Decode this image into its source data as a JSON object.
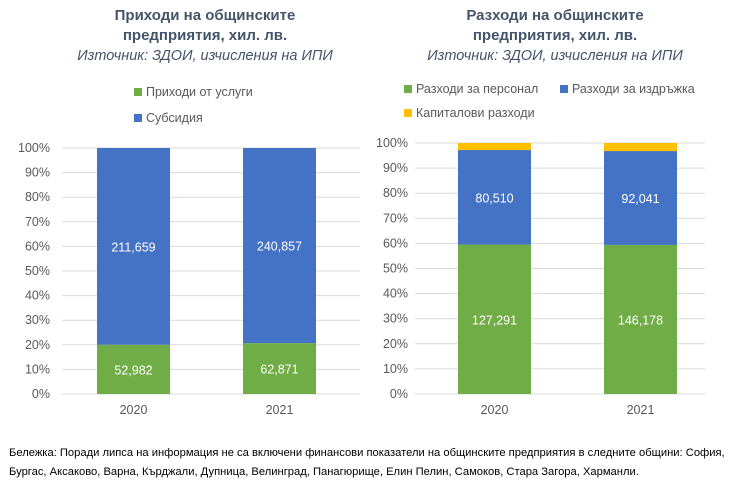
{
  "chart_data": [
    {
      "type": "bar",
      "stacked": "percent",
      "title": "Приходи на общинските предприятия, хил. лв.",
      "subtitle": "Източник: ЗДОИ, изчисления на ИПИ",
      "categories": [
        "2020",
        "2021"
      ],
      "ylim": [
        0,
        100
      ],
      "yticks": [
        "0%",
        "10%",
        "20%",
        "30%",
        "40%",
        "50%",
        "60%",
        "70%",
        "80%",
        "90%",
        "100%"
      ],
      "grid": true,
      "legend": "top",
      "series": [
        {
          "name": "Приходи от услуги",
          "color": "#70ad47",
          "values": [
            52982,
            62871
          ],
          "labels": [
            "52,982",
            "62,871"
          ]
        },
        {
          "name": "Субсидия",
          "color": "#4472c4",
          "values": [
            211659,
            240857
          ],
          "labels": [
            "211,659",
            "240,857"
          ]
        }
      ]
    },
    {
      "type": "bar",
      "stacked": "percent",
      "title": "Разходи на общинските предприятия, хил. лв.",
      "subtitle": "Източник: ЗДОИ, изчисления на ИПИ",
      "categories": [
        "2020",
        "2021"
      ],
      "ylim": [
        0,
        100
      ],
      "yticks": [
        "0%",
        "10%",
        "20%",
        "30%",
        "40%",
        "50%",
        "60%",
        "70%",
        "80%",
        "90%",
        "100%"
      ],
      "grid": true,
      "legend": "top",
      "series": [
        {
          "name": "Разходи за персонал",
          "color": "#70ad47",
          "values": [
            127291,
            146178
          ],
          "labels": [
            "127,291",
            "146,178"
          ]
        },
        {
          "name": "Разходи за издръжка",
          "color": "#4472c4",
          "values": [
            80510,
            92041
          ],
          "labels": [
            "80,510",
            "92,041"
          ]
        },
        {
          "name": "Капиталови разходи",
          "color": "#ffc000",
          "values": [
            6000,
            7900
          ],
          "labels": [
            "",
            ""
          ]
        }
      ]
    }
  ],
  "note": "Бележка: Поради липса на информация не са включени финансови показатели на общинските предприятия в следните общини: София, Бургас, Аксаково, Варна, Кърджали, Дупница, Велинград, Панагюрище, Елин Пелин, Самоков, Стара Загора, Харманли."
}
